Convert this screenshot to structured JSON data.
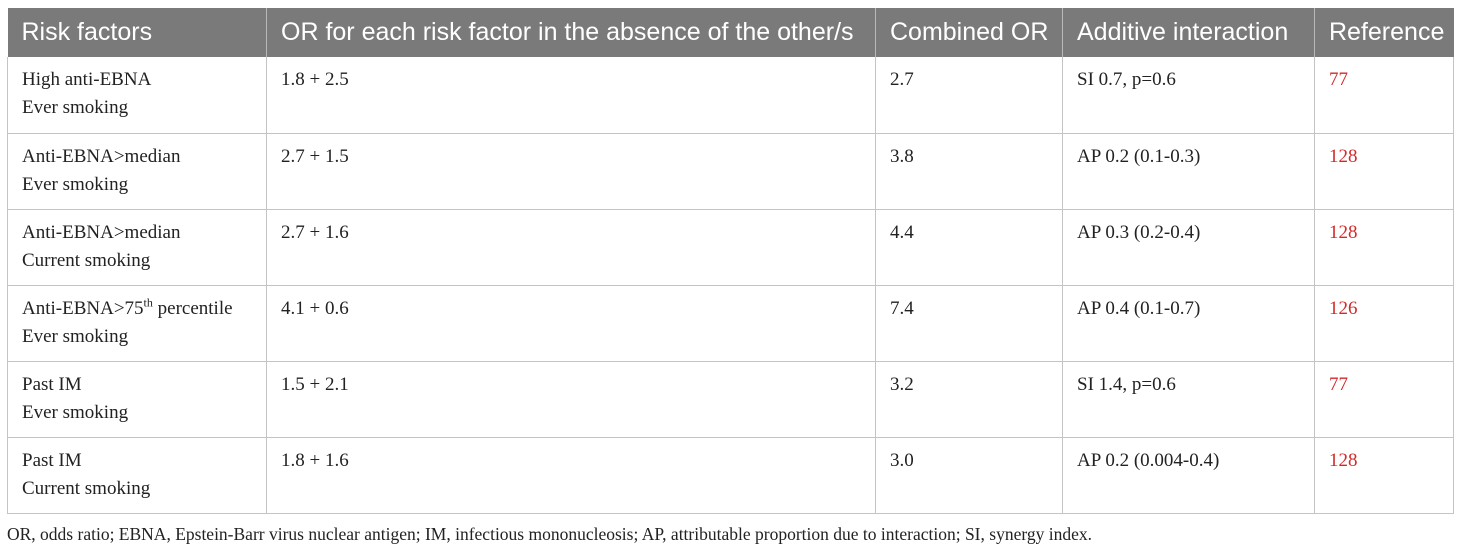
{
  "table": {
    "headers": [
      "Risk factors",
      "OR for each risk factor in the absence of the other/s",
      "Combined OR",
      "Additive interaction",
      "Reference"
    ],
    "rows": [
      {
        "factor1": "High anti-EBNA",
        "factor1_sup": "",
        "factor1_tail": "",
        "factor2": "Ever smoking",
        "or_each": "1.8 + 2.5",
        "combined": "2.7",
        "interaction": "SI 0.7, p=0.6",
        "reference": "77"
      },
      {
        "factor1": "Anti-EBNA>median",
        "factor1_sup": "",
        "factor1_tail": "",
        "factor2": "Ever smoking",
        "or_each": "2.7 + 1.5",
        "combined": "3.8",
        "interaction": "AP 0.2 (0.1-0.3)",
        "reference": "128"
      },
      {
        "factor1": "Anti-EBNA>median",
        "factor1_sup": "",
        "factor1_tail": "",
        "factor2": "Current smoking",
        "or_each": "2.7 + 1.6",
        "combined": "4.4",
        "interaction": "AP 0.3 (0.2-0.4)",
        "reference": "128"
      },
      {
        "factor1": "Anti-EBNA>75",
        "factor1_sup": "th",
        "factor1_tail": " percentile",
        "factor2": "Ever smoking",
        "or_each": "4.1 + 0.6",
        "combined": "7.4",
        "interaction": "AP 0.4 (0.1-0.7)",
        "reference": "126"
      },
      {
        "factor1": "Past IM",
        "factor1_sup": "",
        "factor1_tail": "",
        "factor2": "Ever smoking",
        "or_each": "1.5 + 2.1",
        "combined": "3.2",
        "interaction": "SI 1.4, p=0.6",
        "reference": "77"
      },
      {
        "factor1": "Past IM",
        "factor1_sup": "",
        "factor1_tail": "",
        "factor2": "Current smoking",
        "or_each": "1.8 + 1.6",
        "combined": "3.0",
        "interaction": "AP 0.2 (0.004-0.4)",
        "reference": "128"
      }
    ]
  },
  "footnote": "OR, odds ratio; EBNA, Epstein-Barr virus nuclear antigen; IM, infectious mononucleosis; AP, attributable proportion due to interaction; SI, synergy index.",
  "colors": {
    "header_bg": "#7a7a7a",
    "header_text": "#ffffff",
    "reference_link": "#d22a2a",
    "grid": "#c4c4c4"
  }
}
